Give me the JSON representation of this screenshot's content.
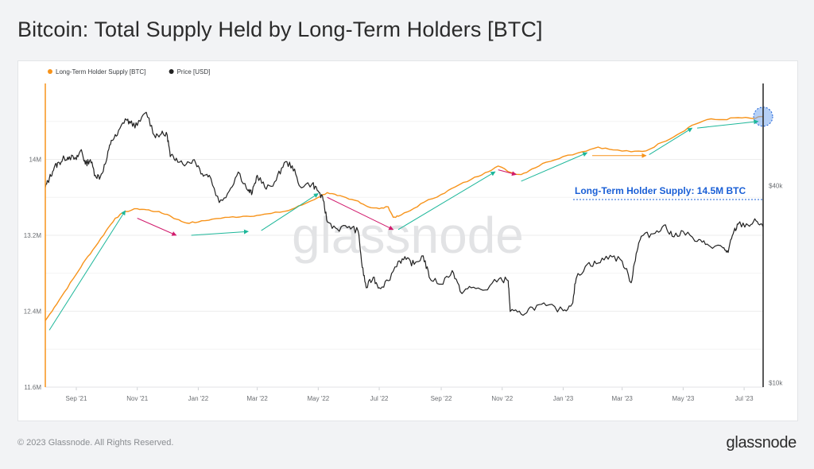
{
  "page": {
    "title": "Bitcoin: Total Supply Held by Long-Term Holders [BTC]",
    "copyright": "© 2023 Glassnode. All Rights Reserved.",
    "logo_text": "glassnode",
    "watermark_text": "glassnode"
  },
  "chart_data": {
    "type": "line",
    "title": "Bitcoin: Total Supply Held by Long-Term Holders [BTC]",
    "legend_position": "top-left",
    "x_range": [
      "2021-08-01",
      "2023-07-20"
    ],
    "x_ticks": [
      {
        "date": "2021-09-01",
        "label": "Sep '21"
      },
      {
        "date": "2021-11-01",
        "label": "Nov '21"
      },
      {
        "date": "2022-01-01",
        "label": "Jan '22"
      },
      {
        "date": "2022-03-01",
        "label": "Mar '22"
      },
      {
        "date": "2022-05-01",
        "label": "May '22"
      },
      {
        "date": "2022-07-01",
        "label": "Jul '22"
      },
      {
        "date": "2022-09-01",
        "label": "Sep '22"
      },
      {
        "date": "2022-11-01",
        "label": "Nov '22"
      },
      {
        "date": "2023-01-01",
        "label": "Jan '23"
      },
      {
        "date": "2023-03-01",
        "label": "Mar '23"
      },
      {
        "date": "2023-05-01",
        "label": "May '23"
      },
      {
        "date": "2023-07-01",
        "label": "Jul '23"
      }
    ],
    "y_left": {
      "range": [
        11600000,
        14800000
      ],
      "ticks": [
        {
          "value": 11600000,
          "label": "11.6M"
        },
        {
          "value": 12400000,
          "label": "12.4M"
        },
        {
          "value": 13200000,
          "label": "13.2M"
        },
        {
          "value": 14000000,
          "label": "14M"
        }
      ]
    },
    "y_right": {
      "scale": "log",
      "range": [
        9700,
        82000
      ],
      "ticks": [
        {
          "value": 10000,
          "label": "$10k"
        },
        {
          "value": 40000,
          "label": "$40k"
        }
      ]
    },
    "series": [
      {
        "name": "Long-Term Holder Supply [BTC]",
        "axis": "left",
        "color": "#f7931a",
        "points": [
          [
            "2021-08-01",
            12300000
          ],
          [
            "2021-08-10",
            12440000
          ],
          [
            "2021-08-20",
            12600000
          ],
          [
            "2021-09-01",
            12790000
          ],
          [
            "2021-09-10",
            12940000
          ],
          [
            "2021-09-20",
            13080000
          ],
          [
            "2021-10-01",
            13250000
          ],
          [
            "2021-10-10",
            13380000
          ],
          [
            "2021-10-20",
            13450000
          ],
          [
            "2021-11-01",
            13480000
          ],
          [
            "2021-11-10",
            13470000
          ],
          [
            "2021-11-20",
            13450000
          ],
          [
            "2021-12-01",
            13420000
          ],
          [
            "2021-12-10",
            13370000
          ],
          [
            "2021-12-20",
            13330000
          ],
          [
            "2022-01-01",
            13340000
          ],
          [
            "2022-01-15",
            13370000
          ],
          [
            "2022-02-01",
            13390000
          ],
          [
            "2022-02-15",
            13400000
          ],
          [
            "2022-03-01",
            13410000
          ],
          [
            "2022-03-15",
            13430000
          ],
          [
            "2022-04-01",
            13460000
          ],
          [
            "2022-04-15",
            13520000
          ],
          [
            "2022-05-01",
            13600000
          ],
          [
            "2022-05-10",
            13650000
          ],
          [
            "2022-05-20",
            13620000
          ],
          [
            "2022-06-01",
            13580000
          ],
          [
            "2022-06-10",
            13560000
          ],
          [
            "2022-06-20",
            13500000
          ],
          [
            "2022-07-01",
            13480000
          ],
          [
            "2022-07-10",
            13500000
          ],
          [
            "2022-07-15",
            13390000
          ],
          [
            "2022-07-20",
            13400000
          ],
          [
            "2022-08-01",
            13460000
          ],
          [
            "2022-08-15",
            13550000
          ],
          [
            "2022-09-01",
            13630000
          ],
          [
            "2022-09-15",
            13710000
          ],
          [
            "2022-10-01",
            13790000
          ],
          [
            "2022-10-15",
            13860000
          ],
          [
            "2022-10-28",
            13930000
          ],
          [
            "2022-11-10",
            13860000
          ],
          [
            "2022-11-20",
            13840000
          ],
          [
            "2022-12-01",
            13900000
          ],
          [
            "2022-12-15",
            13970000
          ],
          [
            "2023-01-01",
            14030000
          ],
          [
            "2023-01-20",
            14080000
          ],
          [
            "2023-02-05",
            14130000
          ],
          [
            "2023-02-20",
            14100000
          ],
          [
            "2023-03-10",
            14080000
          ],
          [
            "2023-03-25",
            14090000
          ],
          [
            "2023-04-10",
            14180000
          ],
          [
            "2023-04-25",
            14260000
          ],
          [
            "2023-05-10",
            14360000
          ],
          [
            "2023-05-25",
            14420000
          ],
          [
            "2023-06-10",
            14420000
          ],
          [
            "2023-06-25",
            14440000
          ],
          [
            "2023-07-10",
            14430000
          ],
          [
            "2023-07-20",
            14450000
          ]
        ]
      },
      {
        "name": "Price [USD]",
        "axis": "right",
        "color": "#222222",
        "points": [
          [
            "2021-08-01",
            39500
          ],
          [
            "2021-08-05",
            42000
          ],
          [
            "2021-08-10",
            45500
          ],
          [
            "2021-08-15",
            47000
          ],
          [
            "2021-08-20",
            48500
          ],
          [
            "2021-08-25",
            49000
          ],
          [
            "2021-09-01",
            48000
          ],
          [
            "2021-09-06",
            51500
          ],
          [
            "2021-09-10",
            46500
          ],
          [
            "2021-09-15",
            48000
          ],
          [
            "2021-09-20",
            43000
          ],
          [
            "2021-09-25",
            42500
          ],
          [
            "2021-10-01",
            47500
          ],
          [
            "2021-10-06",
            55000
          ],
          [
            "2021-10-12",
            57000
          ],
          [
            "2021-10-20",
            64000
          ],
          [
            "2021-10-25",
            62000
          ],
          [
            "2021-11-01",
            61000
          ],
          [
            "2021-11-10",
            67000
          ],
          [
            "2021-11-18",
            57000
          ],
          [
            "2021-11-25",
            57500
          ],
          [
            "2021-12-01",
            57000
          ],
          [
            "2021-12-04",
            49000
          ],
          [
            "2021-12-10",
            48500
          ],
          [
            "2021-12-20",
            46500
          ],
          [
            "2021-12-28",
            48000
          ],
          [
            "2022-01-05",
            43500
          ],
          [
            "2022-01-12",
            43000
          ],
          [
            "2022-01-22",
            35500
          ],
          [
            "2022-02-01",
            38500
          ],
          [
            "2022-02-10",
            44000
          ],
          [
            "2022-02-20",
            38500
          ],
          [
            "2022-02-24",
            38000
          ],
          [
            "2022-03-01",
            43000
          ],
          [
            "2022-03-10",
            39000
          ],
          [
            "2022-03-20",
            41500
          ],
          [
            "2022-03-28",
            47000
          ],
          [
            "2022-04-05",
            46000
          ],
          [
            "2022-04-12",
            40000
          ],
          [
            "2022-04-25",
            40500
          ],
          [
            "2022-05-01",
            38500
          ],
          [
            "2022-05-06",
            36000
          ],
          [
            "2022-05-10",
            31000
          ],
          [
            "2022-05-20",
            29500
          ],
          [
            "2022-06-01",
            30000
          ],
          [
            "2022-06-10",
            29000
          ],
          [
            "2022-06-14",
            22500
          ],
          [
            "2022-06-18",
            19500
          ],
          [
            "2022-06-25",
            21000
          ],
          [
            "2022-07-01",
            19500
          ],
          [
            "2022-07-10",
            20500
          ],
          [
            "2022-07-20",
            23500
          ],
          [
            "2022-07-28",
            23800
          ],
          [
            "2022-08-05",
            23000
          ],
          [
            "2022-08-14",
            24400
          ],
          [
            "2022-08-20",
            21000
          ],
          [
            "2022-09-01",
            20000
          ],
          [
            "2022-09-12",
            22000
          ],
          [
            "2022-09-20",
            19000
          ],
          [
            "2022-10-01",
            19500
          ],
          [
            "2022-10-15",
            19200
          ],
          [
            "2022-10-29",
            20800
          ],
          [
            "2022-11-07",
            20500
          ],
          [
            "2022-11-09",
            16500
          ],
          [
            "2022-11-20",
            16200
          ],
          [
            "2022-12-01",
            17000
          ],
          [
            "2022-12-15",
            17200
          ],
          [
            "2023-01-01",
            16600
          ],
          [
            "2023-01-10",
            17400
          ],
          [
            "2023-01-14",
            20800
          ],
          [
            "2023-01-25",
            23000
          ],
          [
            "2023-02-05",
            23200
          ],
          [
            "2023-02-17",
            24500
          ],
          [
            "2023-03-01",
            23500
          ],
          [
            "2023-03-10",
            20200
          ],
          [
            "2023-03-15",
            24800
          ],
          [
            "2023-03-20",
            28000
          ],
          [
            "2023-04-01",
            28500
          ],
          [
            "2023-04-12",
            30300
          ],
          [
            "2023-04-20",
            28000
          ],
          [
            "2023-05-01",
            29000
          ],
          [
            "2023-05-15",
            27000
          ],
          [
            "2023-05-25",
            26500
          ],
          [
            "2023-06-10",
            25800
          ],
          [
            "2023-06-15",
            25000
          ],
          [
            "2023-06-20",
            28500
          ],
          [
            "2023-06-25",
            30500
          ],
          [
            "2023-07-05",
            30300
          ],
          [
            "2023-07-13",
            31200
          ],
          [
            "2023-07-20",
            29900
          ]
        ]
      }
    ],
    "annotations": [
      {
        "type": "text",
        "text": "Long-Term Holder Supply: 14.5M BTC",
        "color": "#1a5fd6"
      },
      {
        "type": "circle",
        "date": "2023-07-20",
        "value": 14450000,
        "color": "#1a5fd6"
      },
      {
        "type": "arrow",
        "color": "#1db79a",
        "from": [
          "2021-08-05",
          12200000
        ],
        "to": [
          "2021-10-20",
          13460000
        ]
      },
      {
        "type": "arrow",
        "color": "#d11a6c",
        "from": [
          "2021-11-01",
          13380000
        ],
        "to": [
          "2021-12-10",
          13200000
        ]
      },
      {
        "type": "arrow",
        "color": "#1db79a",
        "from": [
          "2021-12-25",
          13200000
        ],
        "to": [
          "2022-02-20",
          13240000
        ]
      },
      {
        "type": "arrow",
        "color": "#1db79a",
        "from": [
          "2022-03-05",
          13250000
        ],
        "to": [
          "2022-05-01",
          13640000
        ]
      },
      {
        "type": "arrow",
        "color": "#d11a6c",
        "from": [
          "2022-05-10",
          13600000
        ],
        "to": [
          "2022-07-15",
          13260000
        ]
      },
      {
        "type": "arrow",
        "color": "#1db79a",
        "from": [
          "2022-07-20",
          13260000
        ],
        "to": [
          "2022-10-25",
          13870000
        ]
      },
      {
        "type": "arrow",
        "color": "#d11a6c",
        "from": [
          "2022-10-28",
          13890000
        ],
        "to": [
          "2022-11-15",
          13840000
        ]
      },
      {
        "type": "arrow",
        "color": "#1db79a",
        "from": [
          "2022-11-20",
          13770000
        ],
        "to": [
          "2023-01-25",
          14070000
        ]
      },
      {
        "type": "arrow",
        "color": "#f7931a",
        "from": [
          "2023-01-30",
          14040000
        ],
        "to": [
          "2023-03-25",
          14040000
        ]
      },
      {
        "type": "arrow",
        "color": "#1db79a",
        "from": [
          "2023-03-28",
          14050000
        ],
        "to": [
          "2023-05-10",
          14330000
        ]
      },
      {
        "type": "arrow",
        "color": "#1db79a",
        "from": [
          "2023-05-15",
          14330000
        ],
        "to": [
          "2023-07-15",
          14400000
        ]
      }
    ]
  }
}
